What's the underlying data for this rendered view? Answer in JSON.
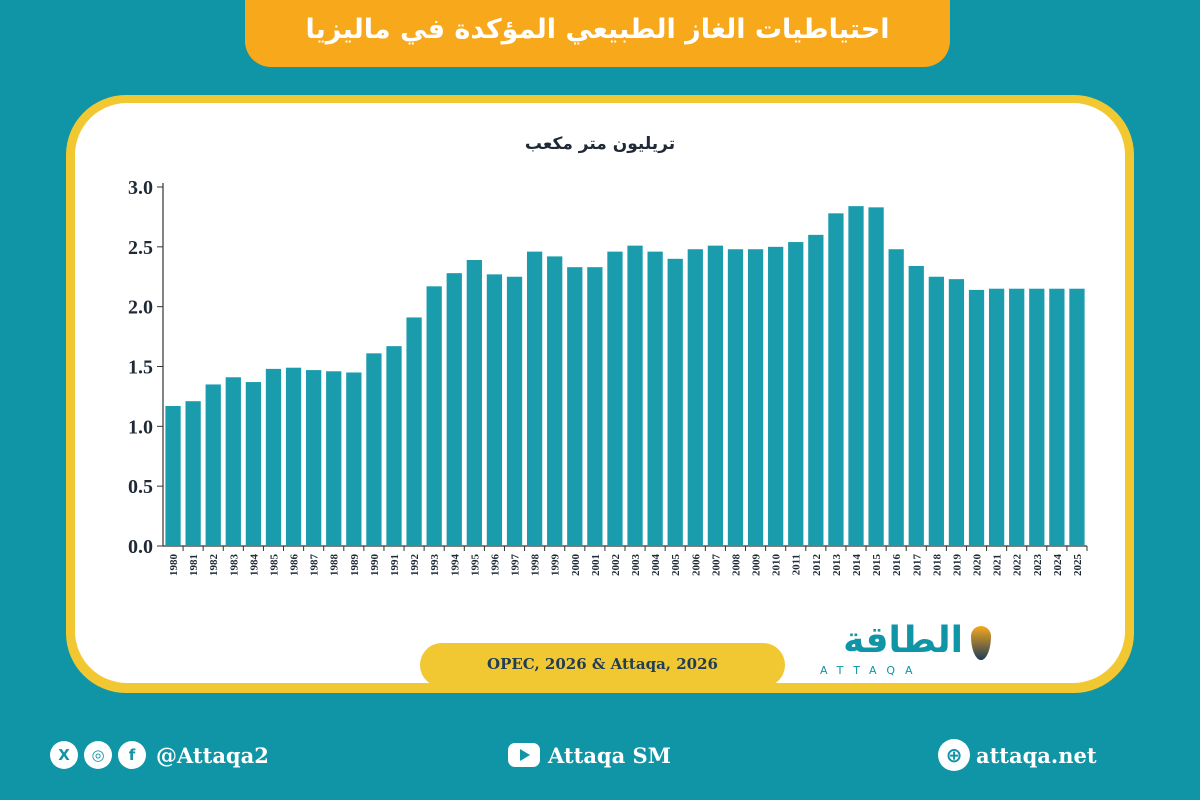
{
  "title": "احتياطيات الغاز الطبيعي المؤكدة في ماليزيا",
  "source": "OPEC, 2026 & Attaqa, 2026",
  "logo": {
    "arabic": "الطاقة",
    "latin": "ATTAQA"
  },
  "footer": {
    "social_handle": "@Attaqa2",
    "youtube": "Attaqa SM",
    "website": "attaqa.net",
    "icons": [
      "x-icon",
      "instagram-icon",
      "facebook-icon",
      "youtube-icon",
      "globe-icon"
    ]
  },
  "colors": {
    "background": "#0f95a6",
    "bar": "#1a9cad",
    "accent": "#f7a81b",
    "frame": "#f2c832",
    "text": "#1f2a36"
  },
  "chart_data": {
    "type": "bar",
    "title": "",
    "xlabel": "",
    "ylabel": "تريليون متر مكعب",
    "ylim": [
      0,
      3.0
    ],
    "yticks": [
      "0.0",
      "0.5",
      "1.0",
      "1.5",
      "2.0",
      "2.5",
      "3.0"
    ],
    "categories": [
      "1980",
      "1981",
      "1982",
      "1983",
      "1984",
      "1985",
      "1986",
      "1987",
      "1988",
      "1989",
      "1990",
      "1991",
      "1992",
      "1993",
      "1994",
      "1995",
      "1996",
      "1997",
      "1998",
      "1999",
      "2000",
      "2001",
      "2002",
      "2003",
      "2004",
      "2005",
      "2006",
      "2007",
      "2008",
      "2009",
      "2010",
      "2011",
      "2012",
      "2013",
      "2014",
      "2015",
      "2016",
      "2017",
      "2018",
      "2019",
      "2020",
      "2021",
      "2022",
      "2023",
      "2024",
      "2025"
    ],
    "values": [
      1.17,
      1.21,
      1.35,
      1.41,
      1.37,
      1.48,
      1.49,
      1.47,
      1.46,
      1.45,
      1.61,
      1.67,
      1.91,
      2.17,
      2.28,
      2.39,
      2.27,
      2.25,
      2.46,
      2.42,
      2.33,
      2.33,
      2.46,
      2.51,
      2.46,
      2.4,
      2.48,
      2.51,
      2.48,
      2.48,
      2.5,
      2.54,
      2.6,
      2.78,
      2.84,
      2.83,
      2.48,
      2.34,
      2.25,
      2.23,
      2.14,
      2.15,
      2.15,
      2.15,
      2.15,
      2.15
    ],
    "grid": false,
    "legend": "none"
  }
}
